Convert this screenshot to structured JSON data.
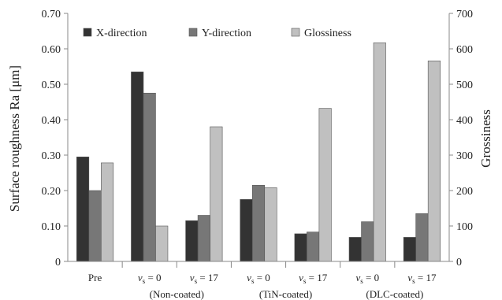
{
  "chart_data": {
    "type": "bar",
    "title": "",
    "xlabel": "",
    "ylabel_left": "Surface roughness Ra [μm]",
    "ylabel_right": "Grossiness",
    "ylim_left": [
      0,
      0.7
    ],
    "ylim_right": [
      0,
      700
    ],
    "yticks_left": [
      "0",
      "0.10",
      "0.20",
      "0.30",
      "0.40",
      "0.50",
      "0.60",
      "0.70"
    ],
    "yticks_right": [
      "0",
      "100",
      "200",
      "300",
      "400",
      "500",
      "600",
      "700"
    ],
    "categories": [
      "Pre",
      "vs = 0",
      "vs = 17",
      "vs = 0",
      "vs = 17",
      "vs = 0",
      "vs = 17"
    ],
    "groups": [
      {
        "label": "(Non-coated)",
        "categories": [
          1,
          2
        ]
      },
      {
        "label": "(TiN-coated)",
        "categories": [
          3,
          4
        ]
      },
      {
        "label": "(DLC-coated)",
        "categories": [
          5,
          6
        ]
      }
    ],
    "legend_position": "top",
    "series": [
      {
        "name": "X-direction",
        "axis": "left",
        "color": "#333333",
        "values": [
          0.295,
          0.535,
          0.115,
          0.175,
          0.078,
          0.068,
          0.068
        ]
      },
      {
        "name": "Y-direction",
        "axis": "left",
        "color": "#777777",
        "values": [
          0.2,
          0.475,
          0.13,
          0.215,
          0.083,
          0.112,
          0.135
        ]
      },
      {
        "name": "Glossiness",
        "axis": "right",
        "color": "#c0c0c0",
        "values": [
          278,
          100,
          380,
          208,
          432,
          617,
          566
        ]
      }
    ]
  }
}
